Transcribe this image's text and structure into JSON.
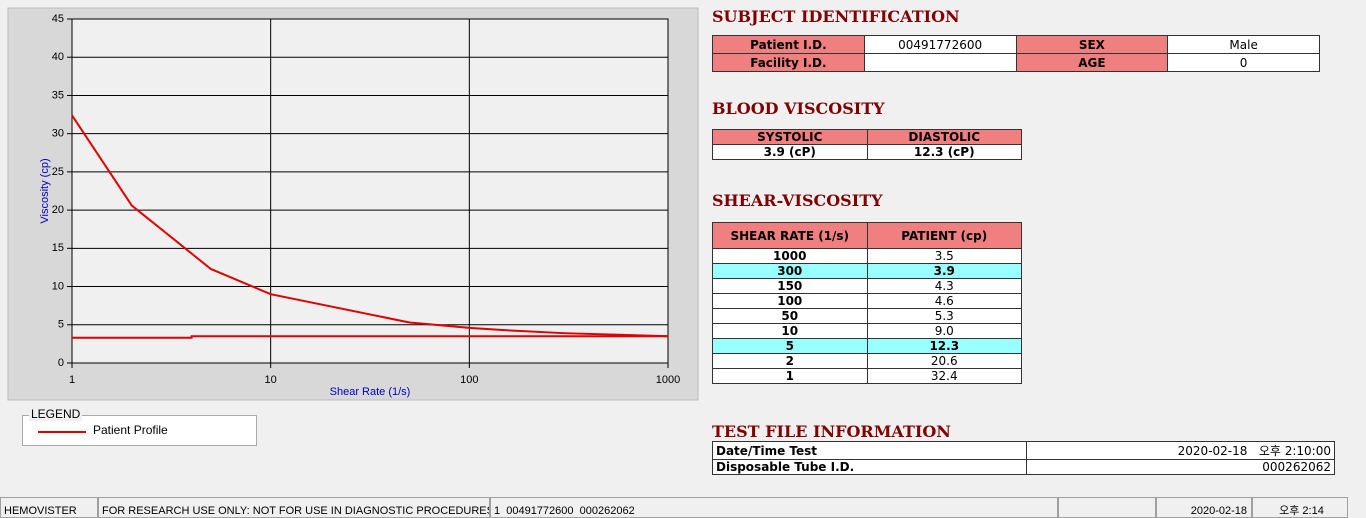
{
  "chart_data": {
    "type": "line",
    "x_label": "Shear Rate (1/s)",
    "y_label": "Viscosity (cp)",
    "x_log": true,
    "grid": true,
    "xlim": [
      1,
      1000
    ],
    "ylim": [
      0,
      45
    ],
    "xticks": [
      1,
      10,
      100,
      1000
    ],
    "yticks": [
      0,
      5,
      10,
      15,
      20,
      25,
      30,
      35,
      40,
      45
    ],
    "legend_title": "LEGEND",
    "series": [
      {
        "name": "Patient Profile",
        "color": "#e00000",
        "x": [
          1,
          2,
          5,
          10,
          50,
          100,
          150,
          300,
          1000
        ],
        "values": [
          32.4,
          20.6,
          12.3,
          9.0,
          5.3,
          4.6,
          4.3,
          3.9,
          3.5
        ]
      },
      {
        "color": "#e00000",
        "x": [
          1,
          4,
          4,
          1000
        ],
        "values": [
          3.3,
          3.3,
          3.5,
          3.5
        ]
      }
    ]
  },
  "subject": {
    "title": "SUBJECT IDENTIFICATION",
    "row1": [
      "Patient I.D.",
      "00491772600",
      "SEX",
      "Male"
    ],
    "row2": [
      "Facility I.D.",
      "AGE",
      "0"
    ]
  },
  "blood_viscosity": {
    "title": "BLOOD VISCOSITY",
    "headers": [
      "SYSTOLIC",
      "DIASTOLIC"
    ],
    "values": [
      "3.9 (cP)",
      "12.3 (cP)"
    ]
  },
  "shear_viscosity": {
    "title": "SHEAR-VISCOSITY",
    "headers": [
      "SHEAR RATE (1/s)",
      "PATIENT (cp)"
    ],
    "rows": [
      [
        "1000",
        "3.5"
      ],
      [
        "300",
        "3.9"
      ],
      [
        "150",
        "4.3"
      ],
      [
        "100",
        "4.6"
      ],
      [
        "50",
        "5.3"
      ],
      [
        "10",
        "9.0"
      ],
      [
        "5",
        "12.3"
      ],
      [
        "2",
        "20.6"
      ],
      [
        "1",
        "32.4"
      ]
    ]
  },
  "test_file": {
    "title": "TEST FILE INFORMATION",
    "rows": [
      [
        "Date/Time Test",
        "2020-02-18   오후 2:10:00"
      ],
      [
        "Disposable Tube I.D.",
        "000262062"
      ]
    ]
  },
  "status_bar": [
    "HEMOVISTER",
    "FOR RESEARCH USE ONLY: NOT FOR USE IN DIAGNOSTIC PROCEDURES",
    "1  00491772600  000262062",
    "2020-02-18",
    "오후 2:14"
  ]
}
